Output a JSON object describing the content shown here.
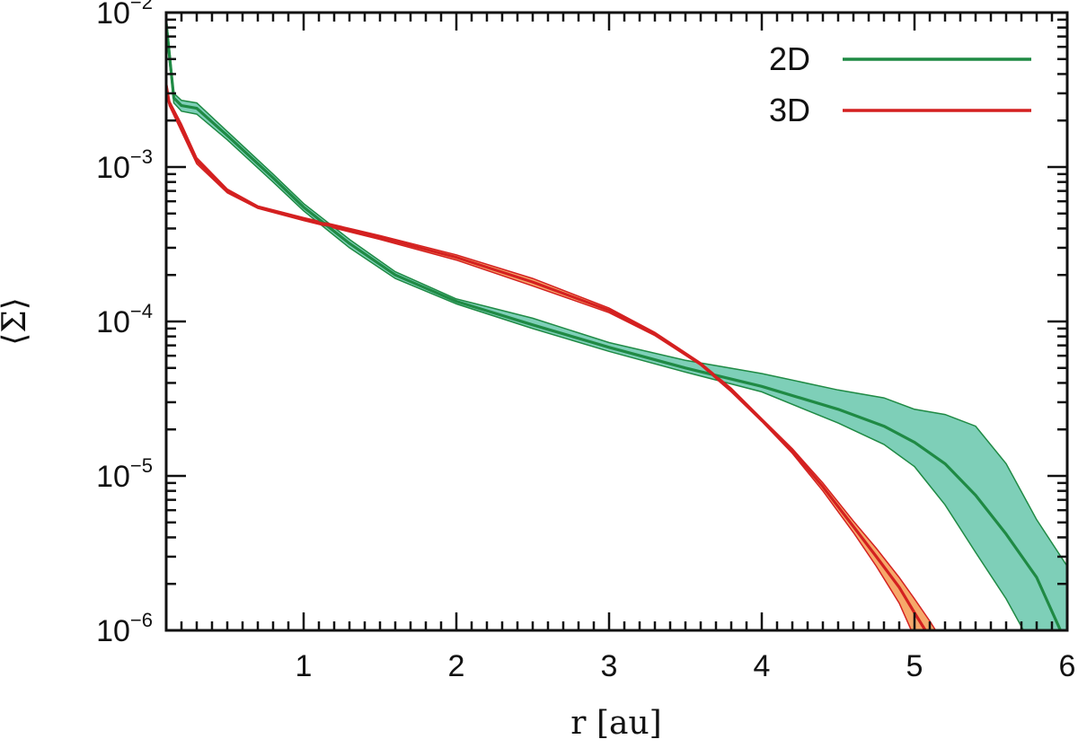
{
  "chart_data": {
    "type": "line",
    "xlabel": "r [au]",
    "ylabel": "⟨Σ⟩",
    "xlim": [
      0.1,
      6
    ],
    "ylim": [
      1e-06,
      0.01
    ],
    "yscale": "log",
    "x_ticks": [
      1,
      2,
      3,
      4,
      5,
      6
    ],
    "x_tick_labels": [
      "1",
      "2",
      "3",
      "4",
      "5",
      "6"
    ],
    "y_ticks": [
      {
        "value": 1e-06,
        "base": "10",
        "exp": "−6"
      },
      {
        "value": 1e-05,
        "base": "10",
        "exp": "−5"
      },
      {
        "value": 0.0001,
        "base": "10",
        "exp": "−4"
      },
      {
        "value": 0.001,
        "base": "10",
        "exp": "−3"
      },
      {
        "value": 0.01,
        "base": "10",
        "exp": "−2"
      }
    ],
    "grid": false,
    "legend_position": "top-right",
    "series": [
      {
        "name": "2D",
        "color": "#1f8a44",
        "band_color": "#7ecfb8",
        "x": [
          0.1,
          0.15,
          0.2,
          0.3,
          0.5,
          0.8,
          1.0,
          1.3,
          1.6,
          2.0,
          2.5,
          3.0,
          3.5,
          4.0,
          4.5,
          4.8,
          5.0,
          5.2,
          5.4,
          5.6,
          5.8,
          6.0
        ],
        "y": [
          0.0085,
          0.0028,
          0.0025,
          0.0024,
          0.0016,
          0.00085,
          0.00055,
          0.00032,
          0.0002,
          0.000135,
          9.5e-05,
          6.8e-05,
          5e-05,
          3.8e-05,
          2.7e-05,
          2.1e-05,
          1.65e-05,
          1.2e-05,
          7.5e-06,
          4.2e-06,
          2.2e-06,
          8e-07
        ],
        "band_upper": [
          0.0095,
          0.003,
          0.0027,
          0.0026,
          0.0017,
          0.0009,
          0.00058,
          0.00034,
          0.00021,
          0.00014,
          0.000105,
          7.3e-05,
          5.6e-05,
          4.6e-05,
          3.6e-05,
          3.2e-05,
          2.7e-05,
          2.5e-05,
          2.1e-05,
          1.2e-05,
          5.2e-06,
          2.6e-06
        ],
        "band_lower": [
          0.0075,
          0.0026,
          0.0023,
          0.0022,
          0.0015,
          0.0008,
          0.00052,
          0.0003,
          0.00019,
          0.00013,
          9e-05,
          6.4e-05,
          4.7e-05,
          3.5e-05,
          2.2e-05,
          1.6e-05,
          1.15e-05,
          6.5e-06,
          3.2e-06,
          1.6e-06,
          7e-07,
          4e-07
        ]
      },
      {
        "name": "3D",
        "color": "#d42020",
        "band_color": "#f6a86a",
        "x": [
          0.1,
          0.12,
          0.2,
          0.3,
          0.5,
          0.7,
          1.0,
          1.5,
          2.0,
          2.5,
          3.0,
          3.3,
          3.6,
          3.8,
          4.0,
          4.2,
          4.4,
          4.6,
          4.75,
          4.9,
          5.0,
          5.1,
          5.2
        ],
        "y": [
          0.0034,
          0.0026,
          0.0018,
          0.0011,
          0.0007,
          0.00055,
          0.00046,
          0.00035,
          0.00026,
          0.00018,
          0.000118,
          8.3e-05,
          5.3e-05,
          3.6e-05,
          2.3e-05,
          1.45e-05,
          8.5e-06,
          4.7e-06,
          3e-06,
          1.9e-06,
          1.3e-06,
          9e-07,
          6e-07
        ],
        "band_upper": [
          0.0036,
          0.0027,
          0.0019,
          0.00115,
          0.00072,
          0.00056,
          0.00047,
          0.00036,
          0.00027,
          0.00019,
          0.000122,
          8.5e-05,
          5.4e-05,
          3.7e-05,
          2.35e-05,
          1.5e-05,
          9e-06,
          5.1e-06,
          3.4e-06,
          2.2e-06,
          1.6e-06,
          1.15e-06,
          8e-07
        ],
        "band_lower": [
          0.0032,
          0.0025,
          0.0017,
          0.00105,
          0.00068,
          0.00054,
          0.00045,
          0.00034,
          0.00025,
          0.00017,
          0.000114,
          8.1e-05,
          5.2e-05,
          3.5e-05,
          2.25e-05,
          1.4e-05,
          8e-06,
          4.3e-06,
          2.6e-06,
          1.5e-06,
          9e-07,
          6e-07,
          4e-07
        ]
      }
    ]
  }
}
